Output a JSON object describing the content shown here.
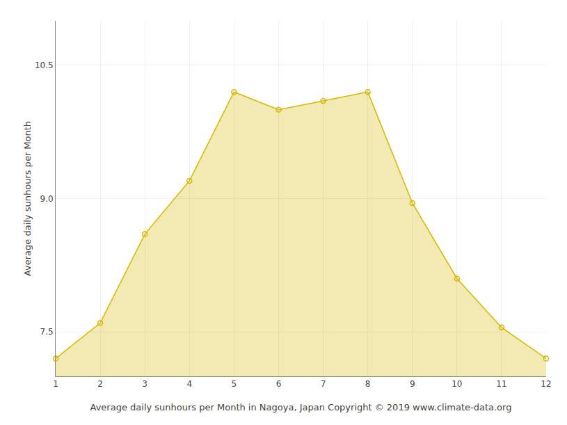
{
  "chart_data": {
    "type": "area",
    "x": [
      1,
      2,
      3,
      4,
      5,
      6,
      7,
      8,
      9,
      10,
      11,
      12
    ],
    "values": [
      7.2,
      7.6,
      8.6,
      9.2,
      10.2,
      10.0,
      10.1,
      10.2,
      8.95,
      8.1,
      7.55,
      7.2
    ],
    "color": "#D4B800",
    "marker": "circle-open",
    "xlabel": "Average daily sunhours per Month in Nagoya, Japan Copyright © 2019 www.climate-data.org",
    "ylabel": "Average daily sunhours per Month",
    "xlim": [
      1,
      12
    ],
    "ylim": [
      7.0,
      11.0
    ],
    "xticks": [
      1,
      2,
      3,
      4,
      5,
      6,
      7,
      8,
      9,
      10,
      11,
      12
    ],
    "yticks": [
      7.5,
      {
        "value": 9.0,
        "label": "9.0"
      },
      10.5
    ],
    "grid": true
  }
}
